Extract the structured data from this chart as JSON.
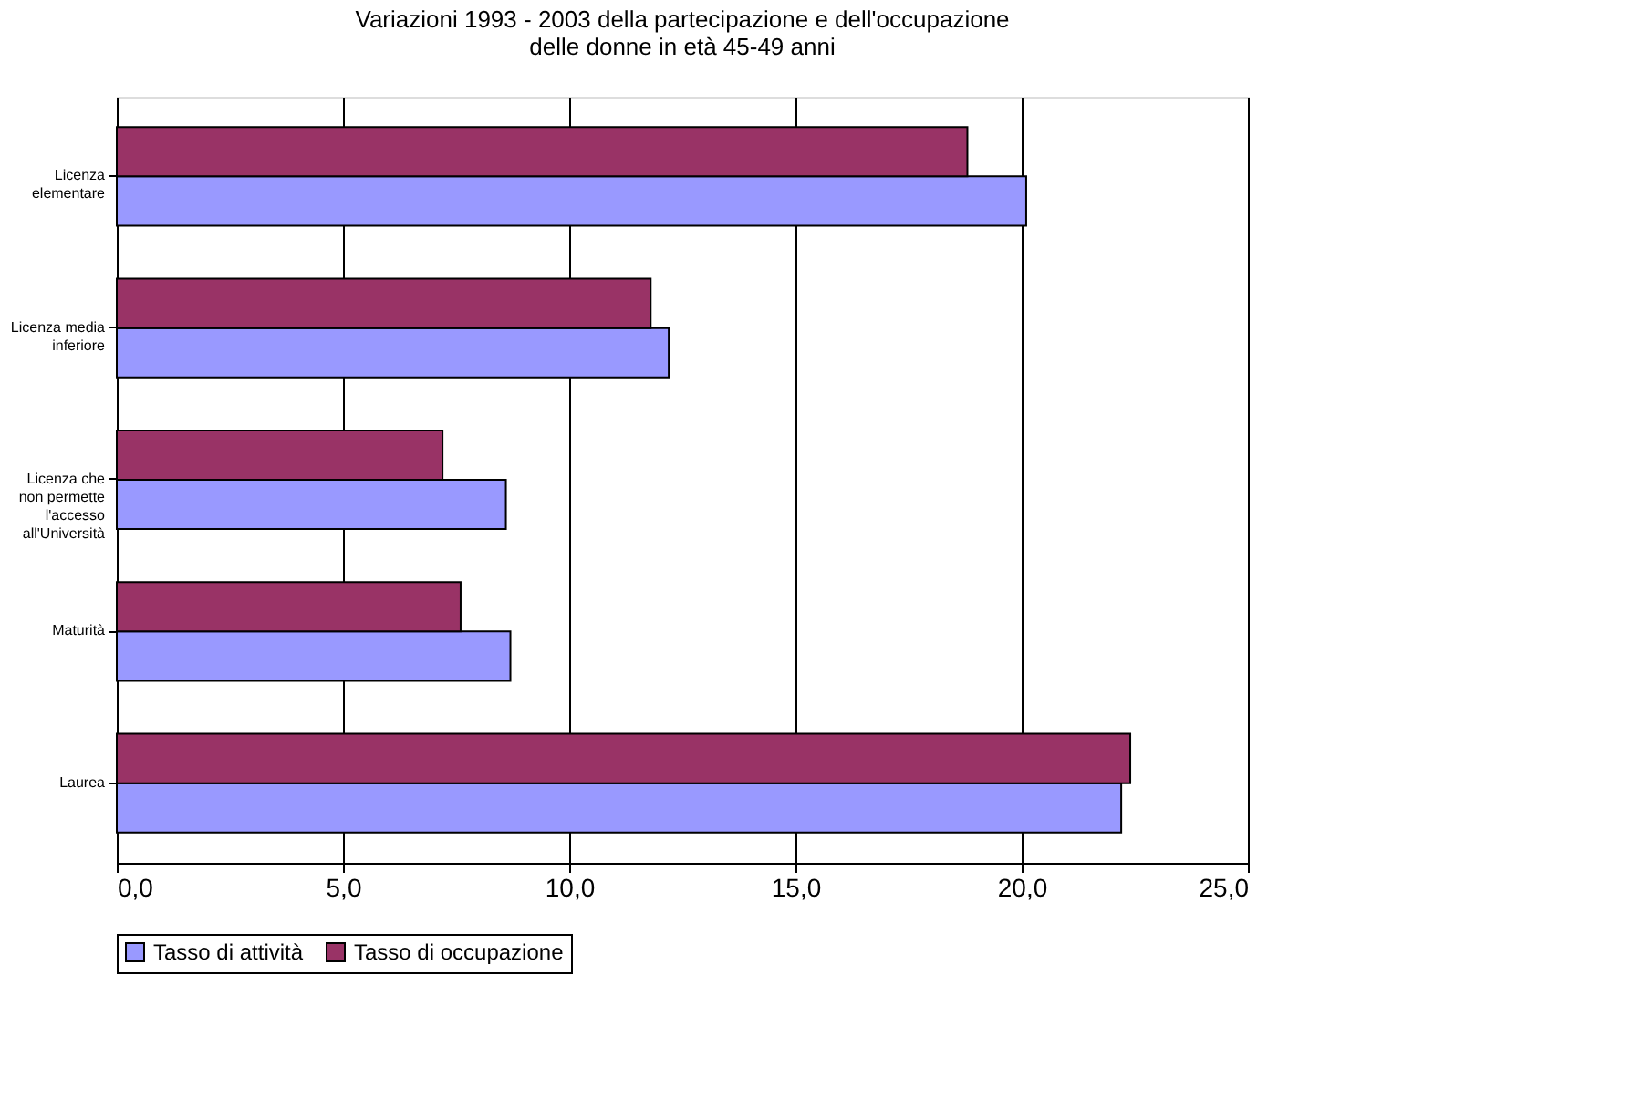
{
  "chart_data": {
    "type": "bar",
    "orientation": "horizontal",
    "title": "Variazioni 1993 - 2003 della partecipazione e dell'occupazione delle donne in età 45-49 anni",
    "categories": [
      "Licenza elementare",
      "Licenza media inferiore",
      "Licenza che non permette l'accesso all'Università",
      "Maturità",
      "Laurea"
    ],
    "series": [
      {
        "name": "Tasso di attività",
        "color": "#9999ff",
        "values": [
          20.1,
          12.2,
          8.6,
          8.7,
          22.2
        ]
      },
      {
        "name": "Tasso di occupazione",
        "color": "#993366",
        "values": [
          18.8,
          11.8,
          7.2,
          7.6,
          22.4
        ]
      }
    ],
    "xlim": [
      0,
      25
    ],
    "xticks": [
      {
        "value": 0,
        "label": "0,0"
      },
      {
        "value": 5,
        "label": "5,0"
      },
      {
        "value": 10,
        "label": "10,0"
      },
      {
        "value": 15,
        "label": "15,0"
      },
      {
        "value": 20,
        "label": "20,0"
      },
      {
        "value": 25,
        "label": "25,0"
      }
    ],
    "grid": "x",
    "legend": "bottom"
  }
}
